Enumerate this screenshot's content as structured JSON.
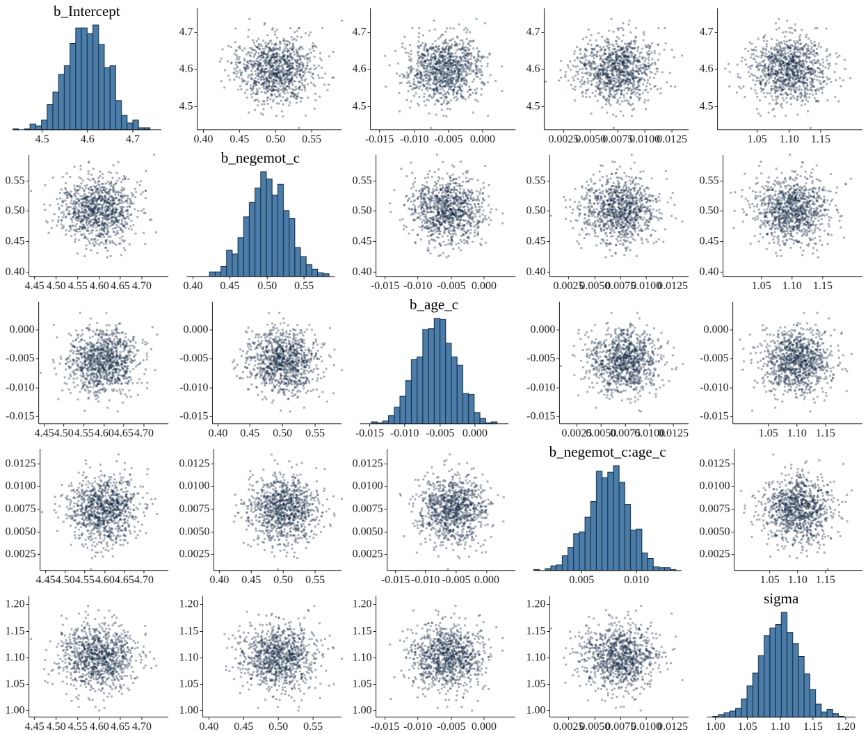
{
  "chart_data": {
    "type": "scatter-matrix",
    "title": "",
    "description": "Pairs plot of MCMC posterior draws: histograms on the diagonal, bivariate scatter plots off the diagonal. All pairs appear uncorrelated (round point clouds).",
    "layout": {
      "rows": 5,
      "cols": 5,
      "diagonal": "histogram",
      "off_diagonal": "scatter",
      "grid": "off",
      "legend": "none"
    },
    "n_samples": 1000,
    "style": {
      "background": "#ffffff",
      "point_color": "#10263f",
      "point_alpha": 0.38,
      "point_radius": 1.6,
      "hist_fill": "#4c7ca8",
      "hist_stroke": "#102a43",
      "axis_color": "#1a1a1a",
      "label_color": "#1a1a1a",
      "title_color": "#000000"
    },
    "parameters": [
      {
        "name": "b_Intercept",
        "mean": 4.6,
        "sd": 0.044,
        "range": [
          4.437,
          4.763
        ],
        "x_ticks": [
          4.45,
          4.5,
          4.55,
          4.6,
          4.65,
          4.7
        ],
        "x_decimals": 2,
        "y_ticks": [
          4.5,
          4.6,
          4.7
        ],
        "y_decimals": 1,
        "hist_ticks": [
          4.5,
          4.6,
          4.7
        ],
        "hist_decimals": 1,
        "hist_bins": 26
      },
      {
        "name": "b_negemot_c",
        "mean": 0.503,
        "sd": 0.027,
        "range": [
          0.392,
          0.592
        ],
        "x_ticks": [
          0.4,
          0.45,
          0.5,
          0.55
        ],
        "x_decimals": 2,
        "y_ticks": [
          0.4,
          0.45,
          0.5,
          0.55
        ],
        "y_decimals": 2,
        "hist_ticks": [
          0.4,
          0.45,
          0.5,
          0.55
        ],
        "hist_decimals": 2,
        "hist_bins": 26
      },
      {
        "name": "b_age_c",
        "mean": -0.0056,
        "sd": 0.0029,
        "range": [
          -0.0163,
          0.0048
        ],
        "x_ticks": [
          -0.015,
          -0.01,
          -0.005,
          0.0
        ],
        "x_decimals": 3,
        "y_ticks": [
          -0.015,
          -0.01,
          -0.005,
          0.0
        ],
        "y_decimals": 3,
        "hist_ticks": [
          -0.015,
          -0.01,
          -0.005,
          0.0
        ],
        "hist_decimals": 3,
        "hist_bins": 26
      },
      {
        "name": "b_negemot_c:age_c",
        "mean": 0.0074,
        "sd": 0.00185,
        "range": [
          0.0007,
          0.0141
        ],
        "x_ticks": [
          0.0025,
          0.005,
          0.0075,
          0.01,
          0.0125
        ],
        "x_decimals": 4,
        "y_ticks": [
          0.0025,
          0.005,
          0.0075,
          0.01,
          0.0125
        ],
        "y_decimals": 4,
        "hist_ticks": [
          0.005,
          0.01
        ],
        "hist_decimals": 3,
        "hist_bins": 26
      },
      {
        "name": "sigma",
        "mean": 1.102,
        "sd": 0.031,
        "range": [
          0.988,
          1.216
        ],
        "x_ticks": [
          1.05,
          1.1,
          1.15
        ],
        "x_decimals": 2,
        "y_ticks": [
          1.0,
          1.05,
          1.1,
          1.15,
          1.2
        ],
        "y_decimals": 2,
        "hist_ticks": [
          1.0,
          1.05,
          1.1,
          1.15,
          1.2
        ],
        "hist_decimals": 2,
        "hist_bins": 26
      }
    ]
  }
}
